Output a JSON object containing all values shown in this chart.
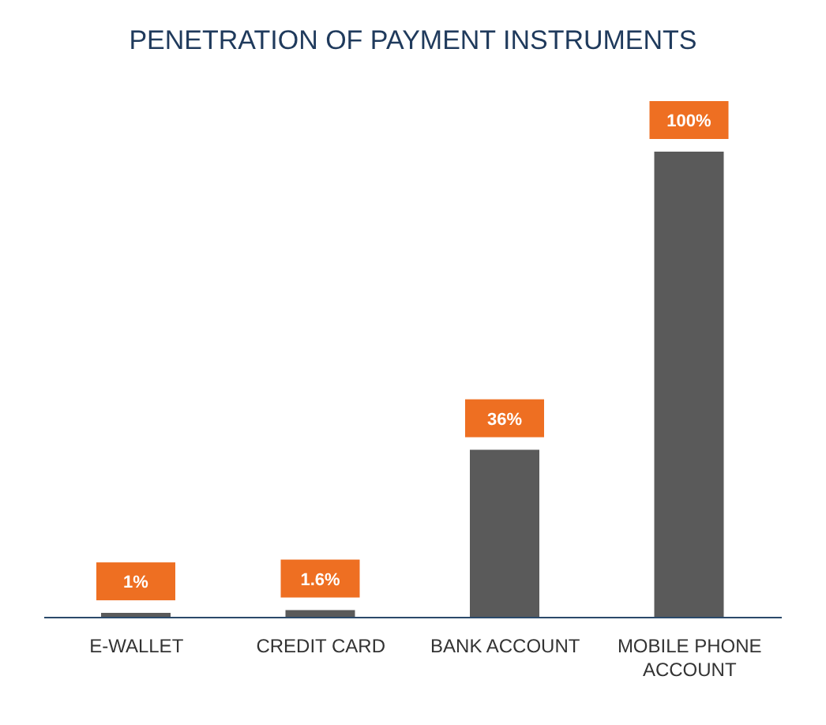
{
  "chart_data": {
    "type": "bar",
    "title": "PENETRATION OF PAYMENT INSTRUMENTS",
    "categories": [
      "E-WALLET",
      "CREDIT CARD",
      "BANK ACCOUNT",
      "MOBILE PHONE ACCOUNT"
    ],
    "values": [
      1,
      1.6,
      36,
      100
    ],
    "value_labels": [
      "1%",
      "1.6%",
      "36%",
      "100%"
    ],
    "color": "#5a5a5a"
  }
}
